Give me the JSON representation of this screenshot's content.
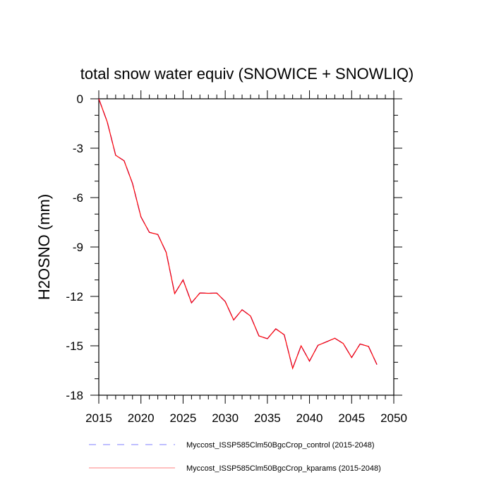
{
  "chart_data": {
    "type": "line",
    "title": "total snow water equiv (SNOWICE + SNOWLIQ)",
    "xlabel": "",
    "ylabel": "H2OSNO  (mm)",
    "xlim": [
      2015,
      2050
    ],
    "ylim": [
      -18,
      0
    ],
    "xticks": [
      2015,
      2020,
      2025,
      2030,
      2035,
      2040,
      2045,
      2050
    ],
    "yticks": [
      0,
      -3,
      -6,
      -9,
      -12,
      -15,
      -18
    ],
    "xtick_labels": [
      "2015",
      "2020",
      "2025",
      "2030",
      "2035",
      "2040",
      "2045",
      "2050"
    ],
    "ytick_labels": [
      "0",
      "-3",
      "-6",
      "-9",
      "-12",
      "-15",
      "-18"
    ],
    "grid": false,
    "legend_placement": "bottom",
    "x": [
      2015,
      2016,
      2017,
      2018,
      2019,
      2020,
      2021,
      2022,
      2023,
      2024,
      2025,
      2026,
      2027,
      2028,
      2029,
      2030,
      2031,
      2032,
      2033,
      2034,
      2035,
      2036,
      2037,
      2038,
      2039,
      2040,
      2041,
      2042,
      2043,
      2044,
      2045,
      2046,
      2047,
      2048
    ],
    "series": [
      {
        "name": "Myccost_ISSP585Clm50BgcCrop_control (2015-2048)",
        "color": "#0000ff",
        "style": "dashed",
        "values": [
          0,
          -1.4,
          -3.43,
          -3.76,
          -5.14,
          -7.17,
          -8.11,
          -8.24,
          -9.33,
          -11.83,
          -11.0,
          -12.39,
          -11.79,
          -11.81,
          -11.8,
          -12.31,
          -13.43,
          -12.81,
          -13.19,
          -14.4,
          -14.57,
          -13.97,
          -14.33,
          -16.37,
          -15.0,
          -15.93,
          -14.97,
          -14.76,
          -14.54,
          -14.86,
          -15.71,
          -14.89,
          -15.04,
          -16.14
        ]
      },
      {
        "name": "Myccost_ISSP585Clm50BgcCrop_kparams (2015-2048)",
        "color": "#ff0000",
        "style": "solid",
        "values": [
          0,
          -1.4,
          -3.43,
          -3.76,
          -5.14,
          -7.17,
          -8.11,
          -8.24,
          -9.33,
          -11.83,
          -11.0,
          -12.39,
          -11.79,
          -11.81,
          -11.8,
          -12.31,
          -13.43,
          -12.81,
          -13.19,
          -14.4,
          -14.57,
          -13.97,
          -14.33,
          -16.37,
          -15.0,
          -15.93,
          -14.97,
          -14.76,
          -14.54,
          -14.86,
          -15.71,
          -14.89,
          -15.04,
          -16.14
        ]
      }
    ]
  }
}
